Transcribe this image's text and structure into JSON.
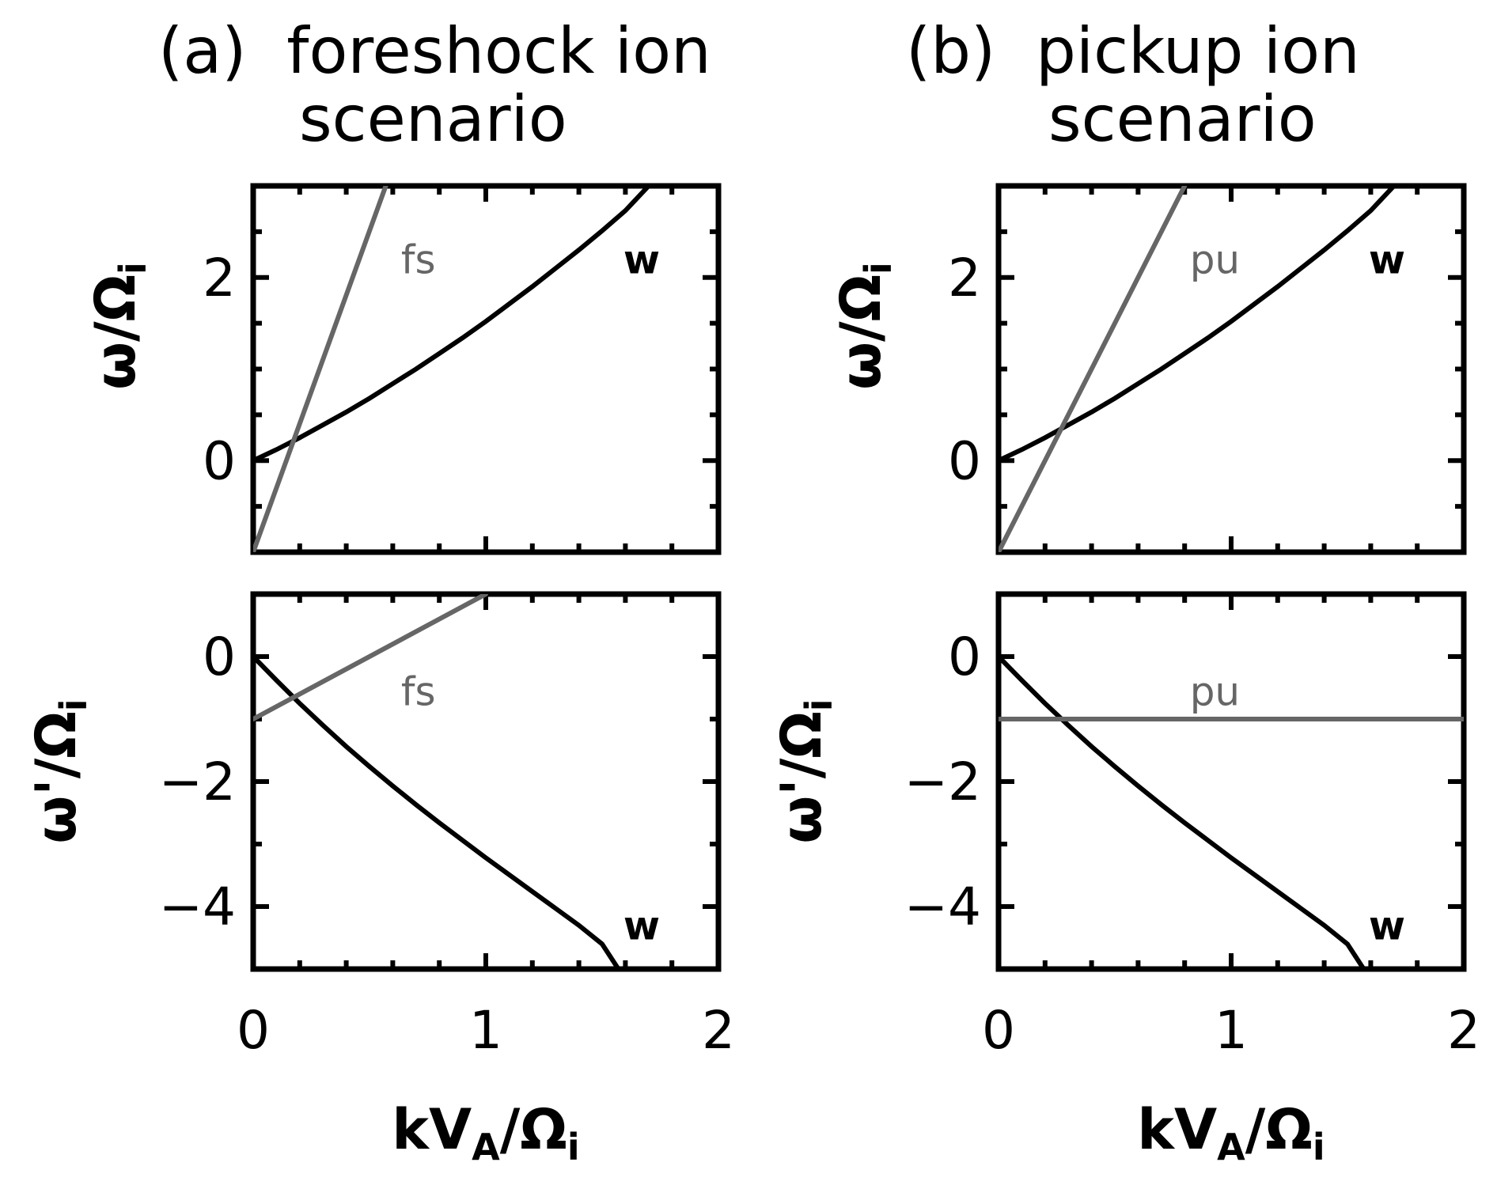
{
  "colors": {
    "axis": "#000000",
    "w_curve": "#000000",
    "beam_line": "#666666"
  },
  "panels": [
    {
      "title_line1": "(a)  foreshock ion",
      "title_line2": "scenario"
    },
    {
      "title_line1": "(b)  pickup ion",
      "title_line2": "scenario"
    }
  ],
  "axis_labels": {
    "x": {
      "main": "kV",
      "sub": "A",
      "tail": "/Ω",
      "tail_sub": "i"
    },
    "y_top": {
      "main": "ω/Ω",
      "sub": "i"
    },
    "y_bottom": {
      "main": "ω'/Ω",
      "sub": "i"
    }
  },
  "chart_data": [
    {
      "type": "line",
      "panel": "a-top",
      "xlim": [
        0,
        2
      ],
      "ylim": [
        -1,
        3
      ],
      "xticks": [
        0,
        1,
        2
      ],
      "yticks": [
        0,
        2
      ],
      "ytick_labels": [
        "0",
        "2"
      ],
      "minor_x_step": 0.2,
      "minor_y_step": 0.5,
      "show_xtick_labels": false,
      "series": [
        {
          "name": "w",
          "color": "#000000",
          "x": [
            0,
            0.1,
            0.2,
            0.3,
            0.4,
            0.5,
            0.6,
            0.7,
            0.8,
            0.9,
            1.0,
            1.1,
            1.2,
            1.3,
            1.4,
            1.5,
            1.6,
            1.7
          ],
          "y": [
            0,
            0.12,
            0.25,
            0.39,
            0.53,
            0.68,
            0.84,
            1.0,
            1.17,
            1.34,
            1.52,
            1.71,
            1.9,
            2.1,
            2.3,
            2.51,
            2.73,
            3.0
          ],
          "label_pos": [
            1.67,
            2.2
          ]
        },
        {
          "name": "fs",
          "color": "#666666",
          "x": [
            0,
            0.57
          ],
          "y": [
            -1,
            3
          ],
          "label_pos": [
            0.71,
            2.2
          ]
        }
      ]
    },
    {
      "type": "line",
      "panel": "b-top",
      "xlim": [
        0,
        2
      ],
      "ylim": [
        -1,
        3
      ],
      "xticks": [
        0,
        1,
        2
      ],
      "yticks": [
        0,
        2
      ],
      "ytick_labels": [
        "0",
        "2"
      ],
      "minor_x_step": 0.2,
      "minor_y_step": 0.5,
      "show_xtick_labels": false,
      "series": [
        {
          "name": "w",
          "color": "#000000",
          "x": [
            0,
            0.1,
            0.2,
            0.3,
            0.4,
            0.5,
            0.6,
            0.7,
            0.8,
            0.9,
            1.0,
            1.1,
            1.2,
            1.3,
            1.4,
            1.5,
            1.6,
            1.7
          ],
          "y": [
            0,
            0.12,
            0.25,
            0.39,
            0.53,
            0.68,
            0.84,
            1.0,
            1.17,
            1.34,
            1.52,
            1.71,
            1.9,
            2.1,
            2.3,
            2.51,
            2.73,
            3.0
          ],
          "label_pos": [
            1.67,
            2.2
          ]
        },
        {
          "name": "pu",
          "color": "#666666",
          "x": [
            0,
            0.8
          ],
          "y": [
            -1,
            3
          ],
          "label_pos": [
            0.93,
            2.2
          ]
        }
      ]
    },
    {
      "type": "line",
      "panel": "a-bottom",
      "xlim": [
        0,
        2
      ],
      "ylim": [
        -5,
        1
      ],
      "xticks": [
        0,
        1,
        2
      ],
      "yticks": [
        0,
        -2,
        -4
      ],
      "ytick_labels": [
        "0",
        "−2",
        "−4"
      ],
      "minor_x_step": 0.2,
      "minor_y_step": 1,
      "show_xtick_labels": true,
      "xtick_labels": [
        "0",
        "1",
        "2"
      ],
      "series": [
        {
          "name": "w",
          "color": "#000000",
          "x": [
            0,
            0.1,
            0.2,
            0.3,
            0.4,
            0.5,
            0.6,
            0.7,
            0.8,
            0.9,
            1.0,
            1.1,
            1.2,
            1.3,
            1.4,
            1.5,
            1.57
          ],
          "y": [
            0,
            -0.38,
            -0.75,
            -1.1,
            -1.44,
            -1.76,
            -2.07,
            -2.37,
            -2.66,
            -2.94,
            -3.22,
            -3.49,
            -3.76,
            -4.03,
            -4.3,
            -4.6,
            -5.0
          ],
          "label_pos": [
            1.67,
            -4.3
          ]
        },
        {
          "name": "fs",
          "color": "#666666",
          "x": [
            0,
            1
          ],
          "y": [
            -1,
            1
          ],
          "label_pos": [
            0.71,
            -0.55
          ]
        }
      ]
    },
    {
      "type": "line",
      "panel": "b-bottom",
      "xlim": [
        0,
        2
      ],
      "ylim": [
        -5,
        1
      ],
      "xticks": [
        0,
        1,
        2
      ],
      "yticks": [
        0,
        -2,
        -4
      ],
      "ytick_labels": [
        "0",
        "−2",
        "−4"
      ],
      "minor_x_step": 0.2,
      "minor_y_step": 1,
      "show_xtick_labels": true,
      "xtick_labels": [
        "0",
        "1",
        "2"
      ],
      "series": [
        {
          "name": "w",
          "color": "#000000",
          "x": [
            0,
            0.1,
            0.2,
            0.3,
            0.4,
            0.5,
            0.6,
            0.7,
            0.8,
            0.9,
            1.0,
            1.1,
            1.2,
            1.3,
            1.4,
            1.5,
            1.57
          ],
          "y": [
            0,
            -0.38,
            -0.75,
            -1.1,
            -1.44,
            -1.76,
            -2.07,
            -2.37,
            -2.66,
            -2.94,
            -3.22,
            -3.49,
            -3.76,
            -4.03,
            -4.3,
            -4.6,
            -5.0
          ],
          "label_pos": [
            1.67,
            -4.3
          ]
        },
        {
          "name": "pu",
          "color": "#666666",
          "x": [
            0,
            2
          ],
          "y": [
            -1,
            -1
          ],
          "label_pos": [
            0.93,
            -0.55
          ]
        }
      ]
    }
  ]
}
